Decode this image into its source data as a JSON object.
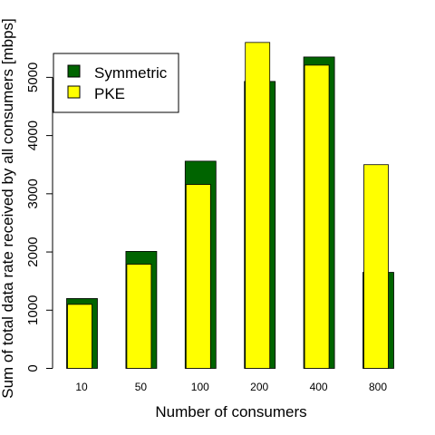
{
  "chart_data": {
    "type": "bar",
    "title": "",
    "xlabel": "Number of consumers",
    "ylabel": "Sum of total data rate received by all consumers [mbps]",
    "categories": [
      "10",
      "50",
      "100",
      "200",
      "400",
      "800"
    ],
    "series": [
      {
        "name": "Symmetric",
        "color": "#006400",
        "values": [
          1200,
          2010,
          3560,
          4930,
          5350,
          1650
        ]
      },
      {
        "name": "PKE",
        "color": "#ffff00",
        "values": [
          1100,
          1790,
          3160,
          5600,
          5210,
          3500
        ]
      }
    ],
    "ylim": [
      0,
      5800
    ],
    "yticks": [
      0,
      1000,
      2000,
      3000,
      4000,
      5000
    ],
    "grid": false,
    "legend_position": "top-left"
  }
}
